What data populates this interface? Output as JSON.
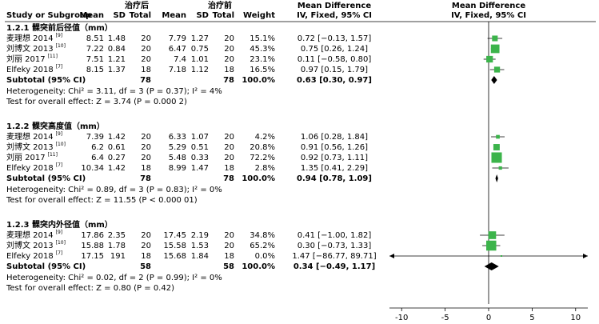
{
  "chart_data": {
    "type": "forest",
    "header": {
      "group1": "治疗后",
      "group2": "治疗前",
      "effect": "Mean Difference",
      "effect_plot": "Mean Difference",
      "study": "Study or Subgroup",
      "mean1": "Mean",
      "sd1": "SD",
      "total1": "Total",
      "mean2": "Mean",
      "sd2": "SD",
      "total2": "Total",
      "weight": "Weight",
      "method": "IV, Fixed, 95% CI",
      "method_plot": "IV, Fixed, 95% CI"
    },
    "subgroups": [
      {
        "title": "1.2.1 髁突前后径值（mm）",
        "studies": [
          {
            "name": "麦理想 2014",
            "ref": "[9]",
            "mean1": "8.51",
            "sd1": "1.48",
            "n1": "20",
            "mean2": "7.79",
            "sd2": "1.27",
            "n2": "20",
            "weight_label": "15.1%",
            "weight": 15.1,
            "ci_label": "0.72 [−0.13, 1.57]",
            "md": 0.72,
            "lo": -0.13,
            "hi": 1.57
          },
          {
            "name": "刘博文 2013",
            "ref": "[10]",
            "mean1": "7.22",
            "sd1": "0.84",
            "n1": "20",
            "mean2": "6.47",
            "sd2": "0.75",
            "n2": "20",
            "weight_label": "45.3%",
            "weight": 45.3,
            "ci_label": "0.75 [0.26, 1.24]",
            "md": 0.75,
            "lo": 0.26,
            "hi": 1.24
          },
          {
            "name": "刘丽 2017",
            "ref": "[11]",
            "mean1": "7.51",
            "sd1": "1.21",
            "n1": "20",
            "mean2": "7.4",
            "sd2": "1.01",
            "n2": "20",
            "weight_label": "23.1%",
            "weight": 23.1,
            "ci_label": "0.11 [−0.58, 0.80]",
            "md": 0.11,
            "lo": -0.58,
            "hi": 0.8
          },
          {
            "name": "Elfeky 2018",
            "ref": "[7]",
            "mean1": "8.15",
            "sd1": "1.37",
            "n1": "18",
            "mean2": "7.18",
            "sd2": "1.12",
            "n2": "18",
            "weight_label": "16.5%",
            "weight": 16.5,
            "ci_label": "0.97 [0.15, 1.79]",
            "md": 0.97,
            "lo": 0.15,
            "hi": 1.79
          }
        ],
        "subtotal": {
          "label": "Subtotal (95% CI)",
          "n1": "78",
          "n2": "78",
          "weight_label": "100.0%",
          "ci_label": "0.63 [0.30, 0.97]",
          "md": 0.63,
          "lo": 0.3,
          "hi": 0.97
        },
        "heterogeneity": "Heterogeneity: Chi² = 3.11, df = 3 (P = 0.37); I² = 4%",
        "overall": "Test for overall effect: Z = 3.74 (P = 0.000 2)"
      },
      {
        "title": "1.2.2 髁突高度值（mm）",
        "studies": [
          {
            "name": "麦理想 2014",
            "ref": "[9]",
            "mean1": "7.39",
            "sd1": "1.42",
            "n1": "20",
            "mean2": "6.33",
            "sd2": "1.07",
            "n2": "20",
            "weight_label": "4.2%",
            "weight": 4.2,
            "ci_label": "1.06 [0.28, 1.84]",
            "md": 1.06,
            "lo": 0.28,
            "hi": 1.84
          },
          {
            "name": "刘博文 2013",
            "ref": "[10]",
            "mean1": "6.2",
            "sd1": "0.61",
            "n1": "20",
            "mean2": "5.29",
            "sd2": "0.51",
            "n2": "20",
            "weight_label": "20.8%",
            "weight": 20.8,
            "ci_label": "0.91 [0.56, 1.26]",
            "md": 0.91,
            "lo": 0.56,
            "hi": 1.26
          },
          {
            "name": "刘丽 2017",
            "ref": "[11]",
            "mean1": "6.4",
            "sd1": "0.27",
            "n1": "20",
            "mean2": "5.48",
            "sd2": "0.33",
            "n2": "20",
            "weight_label": "72.2%",
            "weight": 72.2,
            "ci_label": "0.92 [0.73, 1.11]",
            "md": 0.92,
            "lo": 0.73,
            "hi": 1.11
          },
          {
            "name": "Elfeky 2018",
            "ref": "[7]",
            "mean1": "10.34",
            "sd1": "1.42",
            "n1": "18",
            "mean2": "8.99",
            "sd2": "1.47",
            "n2": "18",
            "weight_label": "2.8%",
            "weight": 2.8,
            "ci_label": "1.35 [0.41, 2.29]",
            "md": 1.35,
            "lo": 0.41,
            "hi": 2.29
          }
        ],
        "subtotal": {
          "label": "Subtotal (95% CI)",
          "n1": "78",
          "n2": "78",
          "weight_label": "100.0%",
          "ci_label": "0.94 [0.78, 1.09]",
          "md": 0.94,
          "lo": 0.78,
          "hi": 1.09
        },
        "heterogeneity": "Heterogeneity: Chi² = 0.89, df = 3 (P = 0.83); I² = 0%",
        "overall": "Test for overall effect: Z = 11.55 (P < 0.000 01)"
      },
      {
        "title": "1.2.3 髁突内外径值（mm）",
        "studies": [
          {
            "name": "麦理想 2014",
            "ref": "[9]",
            "mean1": "17.86",
            "sd1": "2.35",
            "n1": "20",
            "mean2": "17.45",
            "sd2": "2.19",
            "n2": "20",
            "weight_label": "34.8%",
            "weight": 34.8,
            "ci_label": "0.41 [−1.00, 1.82]",
            "md": 0.41,
            "lo": -1.0,
            "hi": 1.82
          },
          {
            "name": "刘博文 2013",
            "ref": "[10]",
            "mean1": "15.88",
            "sd1": "1.78",
            "n1": "20",
            "mean2": "15.58",
            "sd2": "1.53",
            "n2": "20",
            "weight_label": "65.2%",
            "weight": 65.2,
            "ci_label": "0.30 [−0.73, 1.33]",
            "md": 0.3,
            "lo": -0.73,
            "hi": 1.33
          },
          {
            "name": "Elfeky 2018",
            "ref": "[7]",
            "mean1": "17.15",
            "sd1": "191",
            "n1": "18",
            "mean2": "15.68",
            "sd2": "1.84",
            "n2": "18",
            "weight_label": "0.0%",
            "weight": 0.0,
            "ci_label": "1.47 [−86.77, 89.71]",
            "md": 1.47,
            "lo": -86.77,
            "hi": 89.71
          }
        ],
        "subtotal": {
          "label": "Subtotal (95% CI)",
          "n1": "58",
          "n2": "58",
          "weight_label": "100.0%",
          "ci_label": "0.34 [−0.49, 1.17]",
          "md": 0.34,
          "lo": -0.49,
          "hi": 1.17
        },
        "heterogeneity": "Heterogeneity: Chi² = 0.02, df = 2 (P = 0.99); I² = 0%",
        "overall": "Test for overall effect: Z = 0.80 (P = 0.42)"
      }
    ],
    "color": "#3cb44b",
    "xlim": [
      -11.4,
      11.4
    ],
    "xticks": [
      -10,
      -5,
      0,
      5,
      10
    ]
  }
}
